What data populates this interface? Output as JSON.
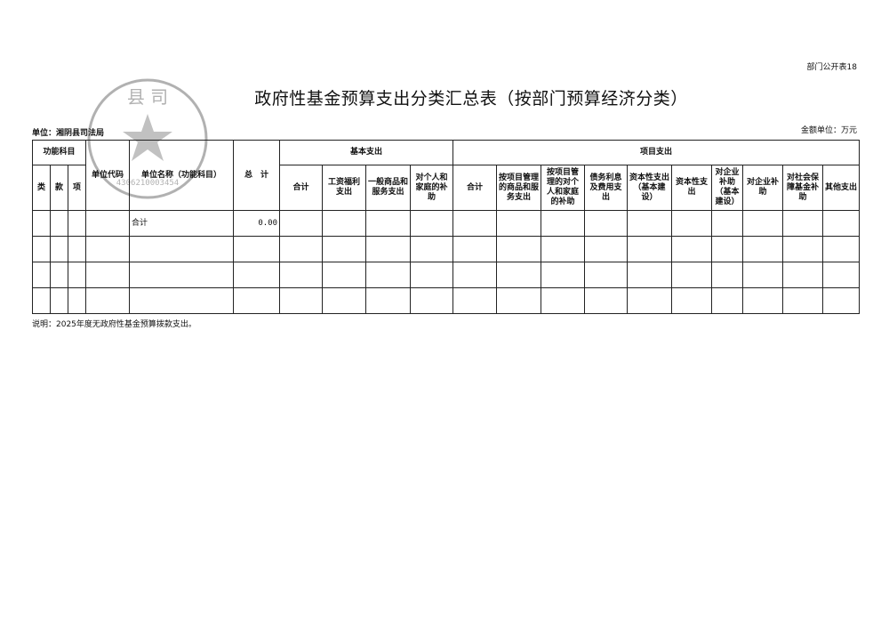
{
  "form_number": "部门公开表18",
  "title": "政府性基金预算支出分类汇总表（按部门预算经济分类）",
  "unit_label": "单位：湘阴县司法局",
  "amount_unit": "金额单位：万元",
  "stamp": {
    "text": "湘阴县司法局",
    "code": "4306210003454"
  },
  "table": {
    "headers": {
      "function_subject": "功能科目",
      "lei": "类",
      "kuan": "款",
      "xiang": "项",
      "unit_code": "单位代码",
      "unit_name": "单位名称（功能科目）",
      "total": "总　计",
      "basic": "基本支出",
      "basic_cols": [
        "合计",
        "工资福利支出",
        "一般商品和服务支出",
        "对个人和家庭的补助"
      ],
      "project": "项目支出",
      "project_cols": [
        "合计",
        "按项目管理的商品和服务支出",
        "按项目管理的对个人和家庭的补助",
        "债务利息及费用支出",
        "资本性支出（基本建设）",
        "资本性支出",
        "对企业补助（基本建设）",
        "对企业补助",
        "对社会保障基金补助",
        "其他支出"
      ]
    },
    "rows": [
      {
        "name": "合计",
        "total": "0.00"
      },
      {
        "name": "",
        "total": ""
      },
      {
        "name": "",
        "total": ""
      },
      {
        "name": "",
        "total": ""
      }
    ]
  },
  "note": "说明：2025年度无政府性基金预算拨款支出。"
}
